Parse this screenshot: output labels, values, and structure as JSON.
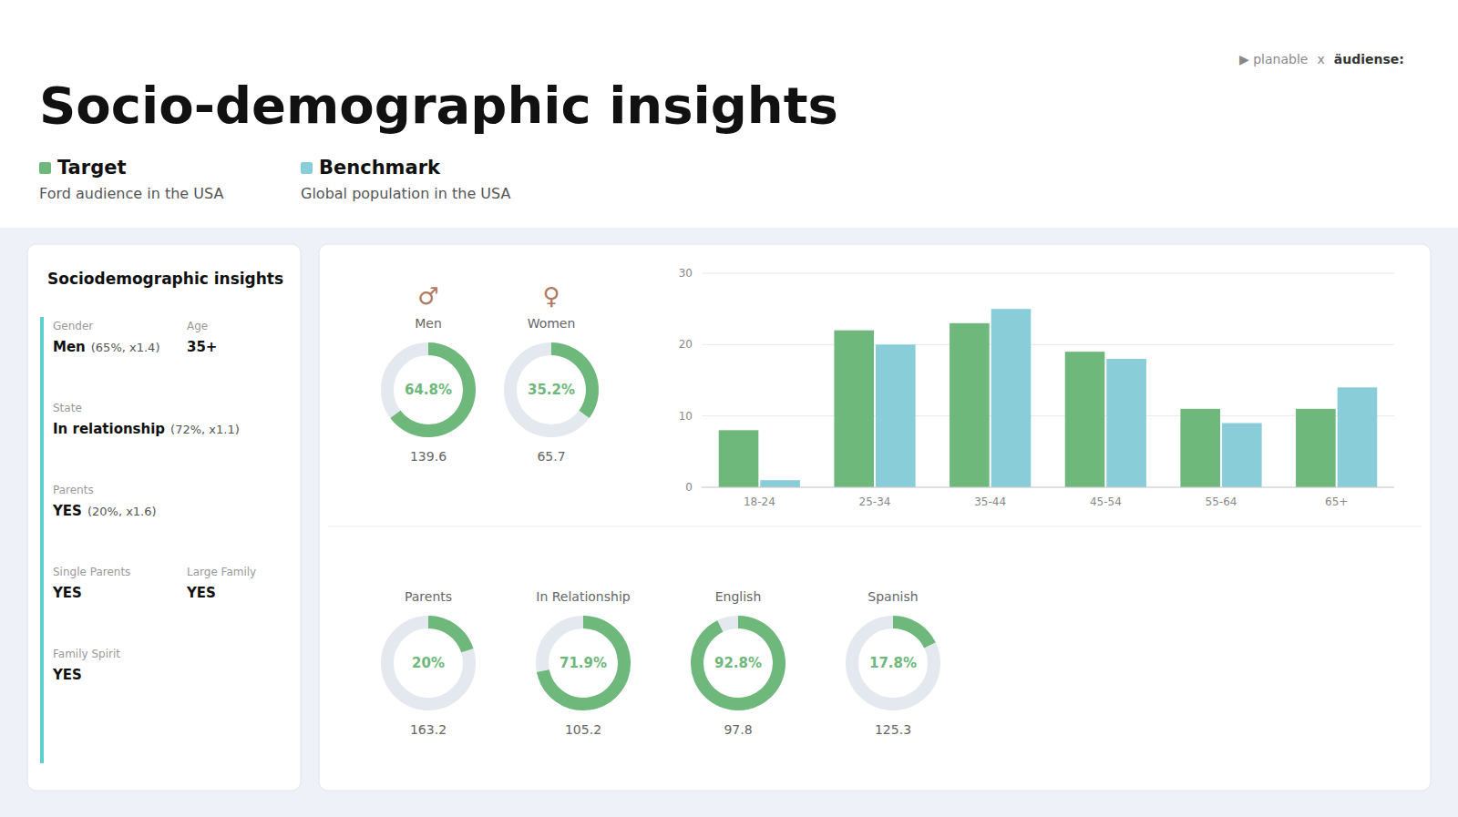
{
  "title": "Socio-demographic insights",
  "annotations": [
    "▶ planable",
    "x",
    "äudiense:"
  ],
  "sidebar": {
    "title": "Sociodemographic insights",
    "rows": [
      [
        {
          "label": "Gender",
          "value": "Men",
          "note": "(65%, x1.4)"
        },
        {
          "label": "Age",
          "value": "35+"
        }
      ],
      [
        {
          "label": "State",
          "value": "In relationship",
          "note": "(72%, x1.1)"
        }
      ],
      [
        {
          "label": "Parents",
          "value": "YES",
          "note": "(20%, x1.6)"
        }
      ],
      [
        {
          "label": "Single Parents",
          "value": "YES"
        },
        {
          "label": "Large Family",
          "value": "YES"
        }
      ],
      [
        {
          "label": "Family Spirit",
          "value": "YES"
        }
      ]
    ]
  },
  "chart_data": [
    {
      "type": "bar",
      "categories": [
        "18-24",
        "25-34",
        "35-44",
        "45-54",
        "55-64",
        "65+"
      ],
      "series": [
        {
          "name": "Target",
          "color": "#6db87a",
          "values": [
            8,
            22,
            23,
            19,
            11,
            11
          ]
        },
        {
          "name": "Benchmark",
          "color": "#89cdd8",
          "values": [
            1,
            20,
            25,
            18,
            9,
            14
          ]
        }
      ],
      "annotations": [
        "Ford audience in the USA",
        "Global population in the USA"
      ],
      "ylim": [
        0,
        30
      ],
      "yticks": [
        0,
        10,
        20,
        30
      ],
      "grid": true
    },
    {
      "type": "donut",
      "title": "Men",
      "values": [
        64.8
      ],
      "value_labels": [
        "64.8%"
      ],
      "index": [
        139.6
      ],
      "color": "#6db87a",
      "annotations": [
        "♂"
      ]
    },
    {
      "type": "donut",
      "title": "Women",
      "values": [
        35.2
      ],
      "value_labels": [
        "35.2%"
      ],
      "index": [
        65.7
      ],
      "color": "#6db87a",
      "annotations": [
        "♀"
      ]
    },
    {
      "type": "donut",
      "title": "Parents",
      "values": [
        20
      ],
      "value_labels": [
        "20%"
      ],
      "index": [
        163.2
      ],
      "color": "#6db87a"
    },
    {
      "type": "donut",
      "title": "In Relationship",
      "values": [
        71.9
      ],
      "value_labels": [
        "71.9%"
      ],
      "index": [
        105.2
      ],
      "color": "#6db87a"
    },
    {
      "type": "donut",
      "title": "English",
      "values": [
        92.8
      ],
      "value_labels": [
        "92.8%"
      ],
      "index": [
        97.8
      ],
      "color": "#6db87a"
    },
    {
      "type": "donut",
      "title": "Spanish",
      "values": [
        17.8
      ],
      "value_labels": [
        "17.8%"
      ],
      "index": [
        125.3
      ],
      "color": "#6db87a"
    }
  ]
}
